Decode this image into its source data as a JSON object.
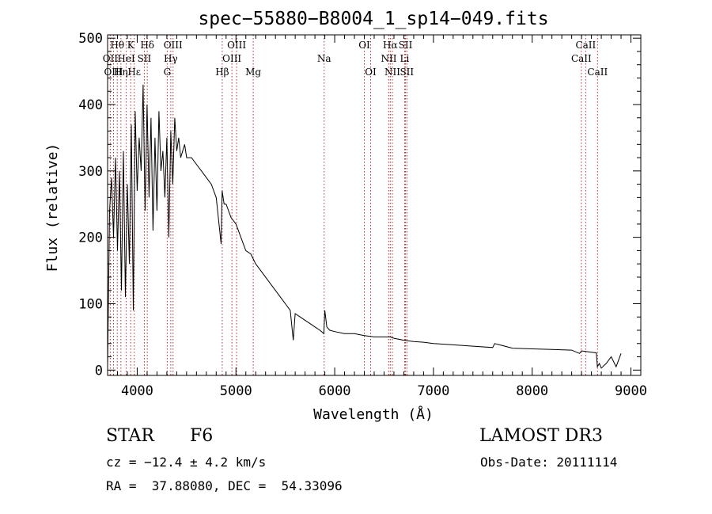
{
  "chart_data": {
    "type": "line",
    "title": "spec−55880−B8004_1_sp14−049.fits",
    "xlabel": "Wavelength (Å)",
    "ylabel": "Flux (relative)",
    "xlim": [
      3700,
      9100
    ],
    "ylim": [
      -8,
      505
    ],
    "xticks": [
      4000,
      5000,
      6000,
      7000,
      8000,
      9000
    ],
    "xtick_labels": [
      "4000",
      "5000",
      "6000",
      "7000",
      "8000",
      "9000"
    ],
    "yticks": [
      0,
      100,
      200,
      300,
      400,
      500
    ],
    "ytick_labels": [
      "0",
      "100",
      "200",
      "300",
      "400",
      "500"
    ],
    "line_color": "#000000",
    "marker_color": "#b03030",
    "spectrum": {
      "x": [
        3700,
        3720,
        3740,
        3760,
        3780,
        3800,
        3820,
        3840,
        3860,
        3880,
        3900,
        3920,
        3940,
        3960,
        3980,
        4000,
        4020,
        4040,
        4060,
        4080,
        4100,
        4120,
        4140,
        4160,
        4180,
        4200,
        4220,
        4240,
        4260,
        4280,
        4300,
        4320,
        4340,
        4360,
        4380,
        4400,
        4420,
        4440,
        4460,
        4480,
        4500,
        4550,
        4600,
        4650,
        4700,
        4750,
        4800,
        4850,
        4860,
        4880,
        4900,
        4950,
        5000,
        5050,
        5100,
        5150,
        5200,
        5250,
        5300,
        5350,
        5400,
        5450,
        5500,
        5550,
        5580,
        5600,
        5650,
        5700,
        5750,
        5800,
        5850,
        5890,
        5900,
        5920,
        5950,
        6000,
        6100,
        6200,
        6300,
        6400,
        6500,
        6560,
        6600,
        6700,
        6800,
        6900,
        7000,
        7200,
        7400,
        7600,
        7620,
        7800,
        8000,
        8200,
        8400,
        8480,
        8500,
        8600,
        8650,
        8660,
        8680,
        8700,
        8750,
        8800,
        8850,
        8900
      ],
      "y": [
        5,
        240,
        290,
        200,
        320,
        180,
        300,
        120,
        330,
        110,
        280,
        160,
        370,
        90,
        390,
        270,
        350,
        300,
        430,
        240,
        400,
        260,
        380,
        210,
        350,
        240,
        390,
        300,
        330,
        260,
        350,
        200,
        360,
        280,
        380,
        330,
        350,
        320,
        330,
        340,
        320,
        320,
        310,
        300,
        290,
        280,
        260,
        190,
        270,
        250,
        250,
        230,
        220,
        200,
        180,
        175,
        160,
        150,
        140,
        130,
        120,
        110,
        100,
        90,
        45,
        85,
        80,
        75,
        70,
        65,
        60,
        55,
        90,
        65,
        60,
        58,
        55,
        55,
        52,
        50,
        50,
        50,
        48,
        45,
        43,
        42,
        40,
        38,
        36,
        34,
        40,
        33,
        32,
        31,
        30,
        25,
        29,
        27,
        26,
        5,
        10,
        3,
        10,
        20,
        5,
        25
      ]
    },
    "line_markers": [
      {
        "name": "Hθ",
        "x": 3798,
        "row": 0
      },
      {
        "name": "K",
        "x": 3934,
        "row": 0
      },
      {
        "name": "Hδ",
        "x": 4102,
        "row": 0
      },
      {
        "name": "OIII",
        "x": 4363,
        "row": 0
      },
      {
        "name": "OIII",
        "x": 5007,
        "row": 0
      },
      {
        "name": "OI",
        "x": 6300,
        "row": 0
      },
      {
        "name": "Hα",
        "x": 6563,
        "row": 0
      },
      {
        "name": "SII",
        "x": 6717,
        "row": 0
      },
      {
        "name": "CaII",
        "x": 8542,
        "row": 0
      },
      {
        "name": "OII",
        "x": 3727,
        "row": 1
      },
      {
        "name": "HeI",
        "x": 3889,
        "row": 1
      },
      {
        "name": "SII",
        "x": 4072,
        "row": 1
      },
      {
        "name": "Hγ",
        "x": 4340,
        "row": 1
      },
      {
        "name": "OIII",
        "x": 4959,
        "row": 1
      },
      {
        "name": "Na",
        "x": 5893,
        "row": 1
      },
      {
        "name": "NII",
        "x": 6548,
        "row": 1
      },
      {
        "name": "Li",
        "x": 6708,
        "row": 1
      },
      {
        "name": "CaII",
        "x": 8498,
        "row": 1
      },
      {
        "name": "OIII",
        "x": 3760,
        "row": 2
      },
      {
        "name": "Hη",
        "x": 3835,
        "row": 2
      },
      {
        "name": "Hε",
        "x": 3970,
        "row": 2
      },
      {
        "name": "G",
        "x": 4304,
        "row": 2
      },
      {
        "name": "Hβ",
        "x": 4861,
        "row": 2
      },
      {
        "name": "Mg",
        "x": 5175,
        "row": 2
      },
      {
        "name": "OI",
        "x": 6364,
        "row": 2
      },
      {
        "name": "NII",
        "x": 6584,
        "row": 2
      },
      {
        "name": "SII",
        "x": 6731,
        "row": 2
      },
      {
        "name": "CaII",
        "x": 8662,
        "row": 2
      }
    ]
  },
  "info": {
    "class": "STAR",
    "subclass": "F6",
    "survey": "LAMOST DR3",
    "redshift": "cz = −12.4 ± 4.2 km/s",
    "obs_date": "Obs-Date: 20111114",
    "coords": "RA =  37.88080, DEC =  54.33096"
  }
}
